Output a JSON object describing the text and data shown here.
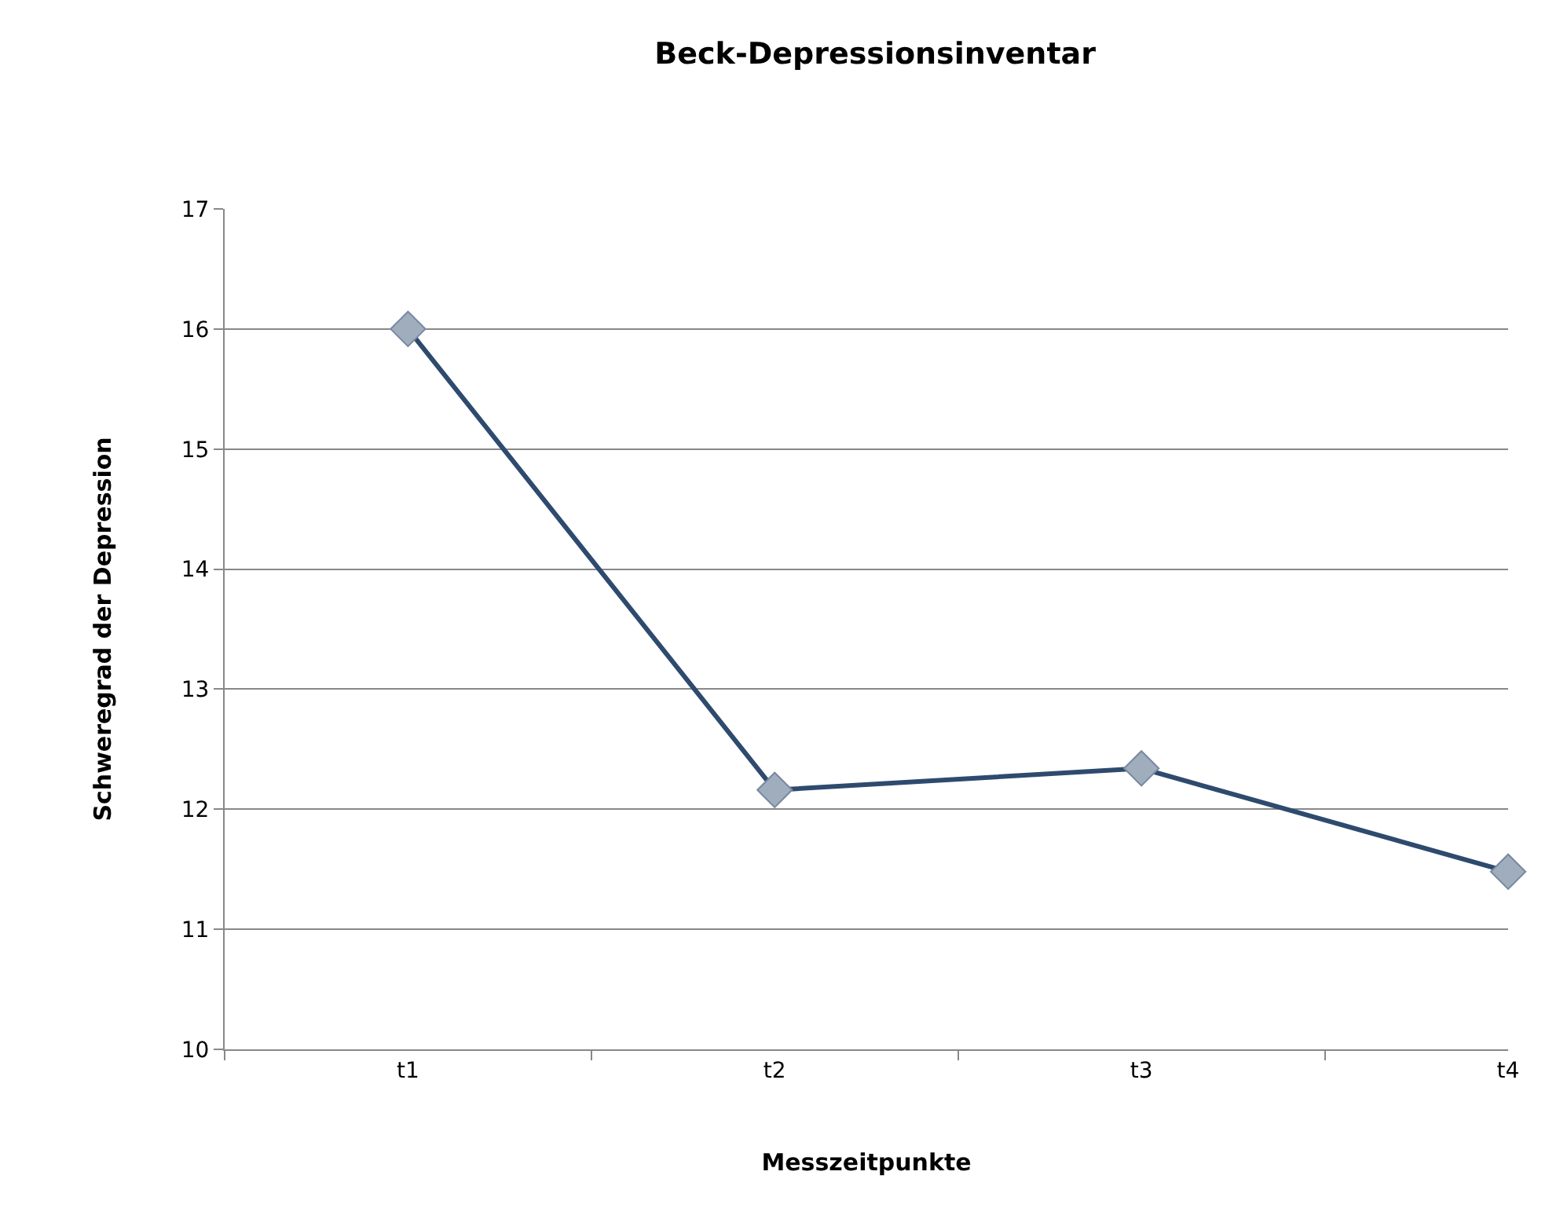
{
  "chart_data": {
    "type": "line",
    "title": "Beck-Depressionsinventar",
    "xlabel": "Messzeitpunkte",
    "ylabel": "Schweregrad der Depression",
    "categories": [
      "t1",
      "t2",
      "t3",
      "t4"
    ],
    "series": [
      {
        "color": "#2e4a6e",
        "values": [
          16.0,
          12.16,
          12.34,
          11.48
        ]
      }
    ],
    "ylim": [
      10,
      17
    ],
    "yticks": [
      10,
      11,
      12,
      13,
      14,
      15,
      16,
      17
    ],
    "grid": "y",
    "marker": "diamond",
    "line_style": "solid"
  }
}
